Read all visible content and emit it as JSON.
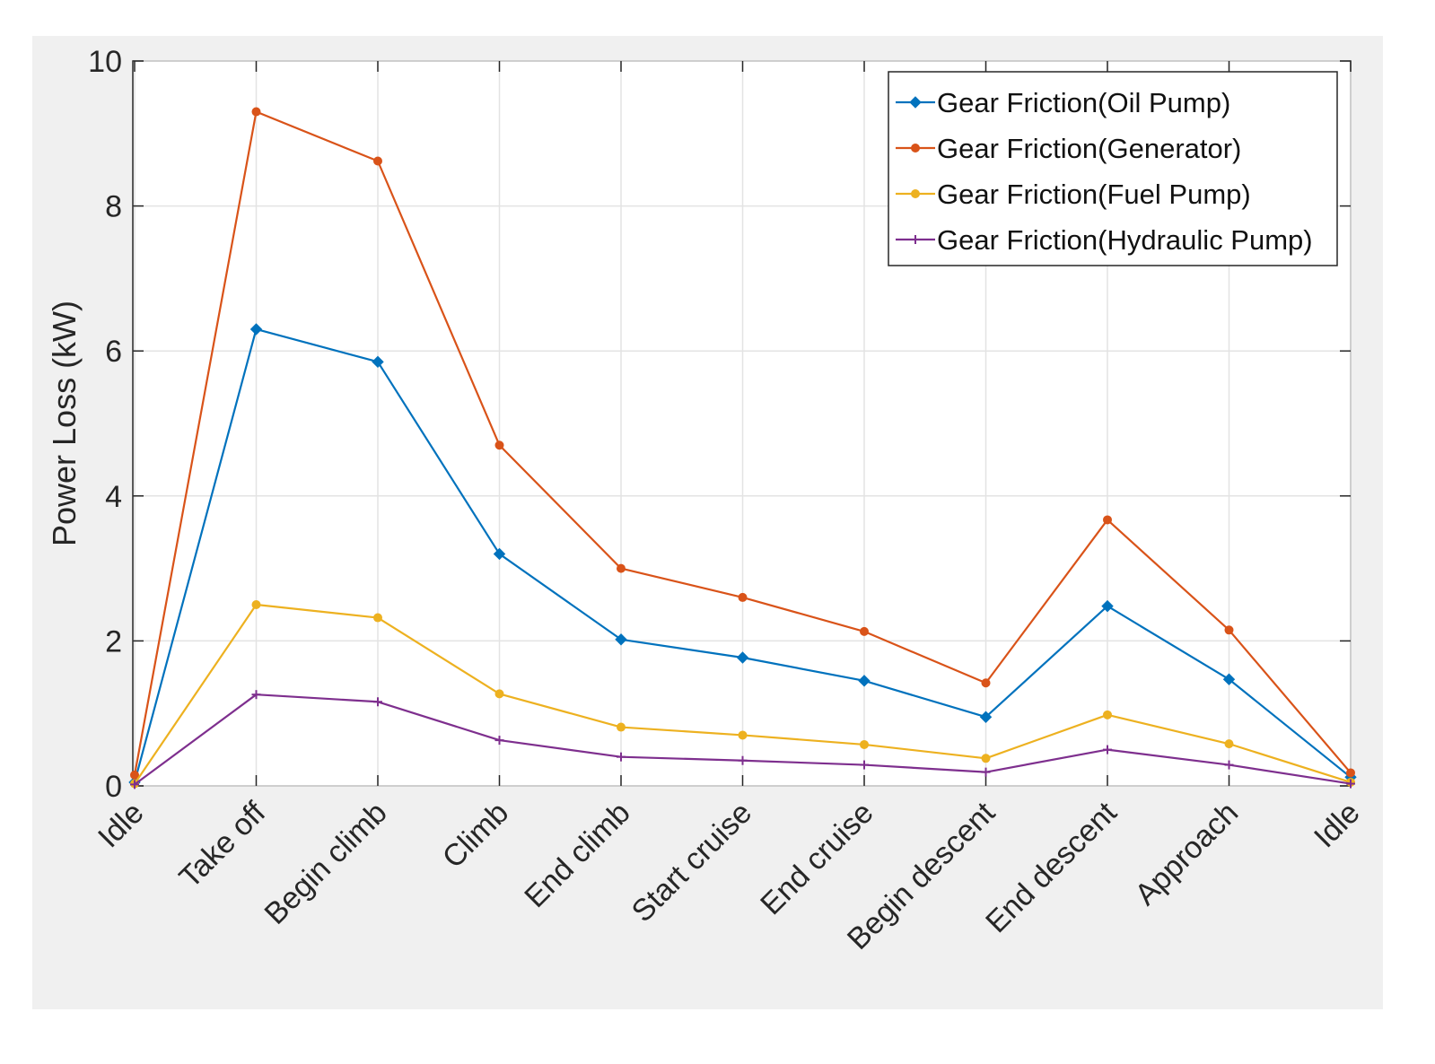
{
  "chart_data": {
    "type": "line",
    "title": "",
    "xlabel": "",
    "ylabel": "Power Loss (kW)",
    "categories": [
      "Idle",
      "Take off",
      "Begin climb",
      "Climb",
      "End climb",
      "Start cruise",
      "End cruise",
      "Begin descent",
      "End descent",
      "Approach",
      "Idle"
    ],
    "ylim": [
      0,
      10
    ],
    "yticks": [
      0,
      2,
      4,
      6,
      8,
      10
    ],
    "grid": true,
    "legend_position": "top-right",
    "series": [
      {
        "name": "Gear Friction(Oil Pump)",
        "color": "#0072BD",
        "marker": "diamond",
        "values": [
          0.05,
          6.3,
          5.85,
          3.2,
          2.02,
          1.77,
          1.45,
          0.95,
          2.48,
          1.47,
          0.12
        ]
      },
      {
        "name": "Gear Friction(Generator)",
        "color": "#D95319",
        "marker": "dot",
        "values": [
          0.15,
          9.3,
          8.62,
          4.7,
          3.0,
          2.6,
          2.13,
          1.42,
          3.67,
          2.15,
          0.18
        ]
      },
      {
        "name": "Gear Friction(Fuel Pump)",
        "color": "#EDB120",
        "marker": "dot",
        "values": [
          0.03,
          2.5,
          2.32,
          1.27,
          0.81,
          0.7,
          0.57,
          0.38,
          0.98,
          0.58,
          0.05
        ]
      },
      {
        "name": "Gear Friction(Hydraulic Pump)",
        "color": "#7E2F8E",
        "marker": "plus",
        "values": [
          0.02,
          1.26,
          1.16,
          0.63,
          0.4,
          0.35,
          0.29,
          0.19,
          0.5,
          0.29,
          0.03
        ]
      }
    ]
  }
}
